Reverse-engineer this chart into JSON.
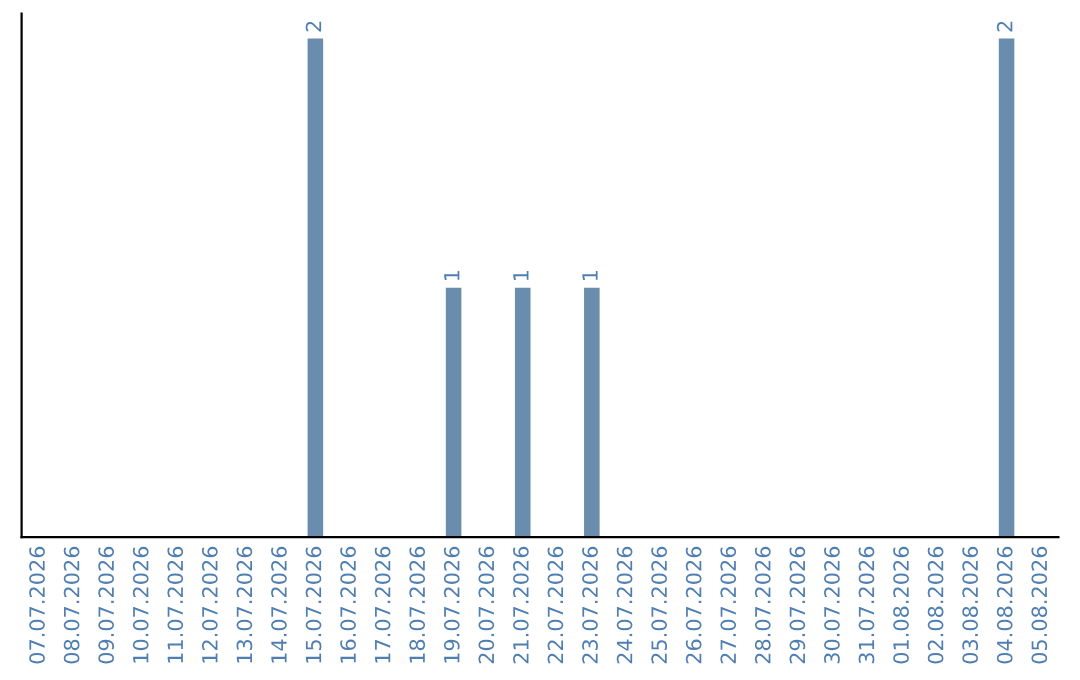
{
  "chart_data": {
    "type": "bar",
    "categories": [
      "07.07.2026",
      "08.07.2026",
      "09.07.2026",
      "10.07.2026",
      "11.07.2026",
      "12.07.2026",
      "13.07.2026",
      "14.07.2026",
      "15.07.2026",
      "16.07.2026",
      "17.07.2026",
      "18.07.2026",
      "19.07.2026",
      "20.07.2026",
      "21.07.2026",
      "22.07.2026",
      "23.07.2026",
      "24.07.2026",
      "25.07.2026",
      "26.07.2026",
      "27.07.2026",
      "28.07.2026",
      "29.07.2026",
      "30.07.2026",
      "31.07.2026",
      "01.08.2026",
      "02.08.2026",
      "03.08.2026",
      "04.08.2026",
      "05.08.2026"
    ],
    "values": [
      0,
      0,
      0,
      0,
      0,
      0,
      0,
      0,
      2,
      0,
      0,
      0,
      1,
      0,
      1,
      0,
      1,
      0,
      0,
      0,
      0,
      0,
      0,
      0,
      0,
      0,
      0,
      0,
      2,
      0
    ],
    "value_labels": [
      null,
      null,
      null,
      null,
      null,
      null,
      null,
      null,
      "2",
      null,
      null,
      null,
      "1",
      null,
      "1",
      null,
      "1",
      null,
      null,
      null,
      null,
      null,
      null,
      null,
      null,
      null,
      null,
      null,
      "2",
      null
    ],
    "color": "#6a8cad",
    "tick_labels": "x",
    "grid": false,
    "legend": false
  }
}
